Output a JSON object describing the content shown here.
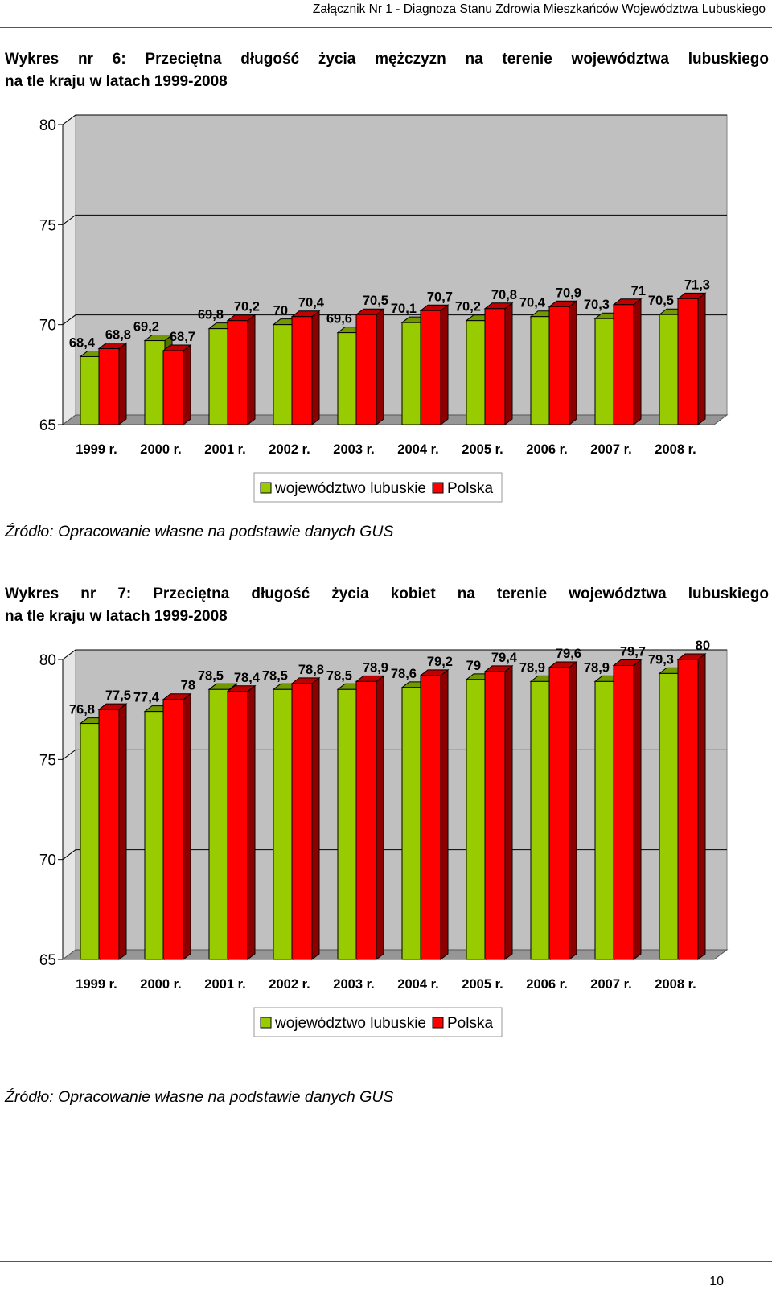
{
  "header": {
    "text": "Załącznik Nr 1 - Diagnoza Stanu Zdrowia Mieszkańców Województwa Lubuskiego"
  },
  "charts": [
    {
      "caption_line1": "Wykres nr 6: Przeciętna długość życia mężczyzn na terenie województwa lubuskiego",
      "caption_line2": "na tle kraju w latach 1999-2008",
      "source": "Źródło: Opracowanie własne na podstawie danych GUS"
    },
    {
      "caption_line1": "Wykres nr 7: Przeciętna długość życia kobiet na terenie województwa lubuskiego",
      "caption_line2": "na tle kraju w latach 1999-2008",
      "source": "Źródło: Opracowanie własne na podstawie danych GUS"
    }
  ],
  "colors": {
    "lubuskie": "#99cc00",
    "polska": "#ff0000",
    "plot_back": "#c0c0c0",
    "plot_floor": "#969696"
  },
  "chart_data": [
    {
      "type": "bar",
      "title": "Wykres nr 6: Przeciętna długość życia mężczyzn na terenie województwa lubuskiego na tle kraju w latach 1999-2008",
      "categories": [
        "1999 r.",
        "2000 r.",
        "2001 r.",
        "2002 r.",
        "2003 r.",
        "2004 r.",
        "2005 r.",
        "2006 r.",
        "2007 r.",
        "2008 r."
      ],
      "series": [
        {
          "name": "województwo lubuskie",
          "values": [
            68.4,
            69.2,
            69.8,
            70,
            69.6,
            70.1,
            70.2,
            70.4,
            70.3,
            70.5
          ],
          "labels": [
            "68,4",
            "69,2",
            "69,8",
            "70",
            "69,6",
            "70,1",
            "70,2",
            "70,4",
            "70,3",
            "70,5"
          ]
        },
        {
          "name": "Polska",
          "values": [
            68.8,
            68.7,
            70.2,
            70.4,
            70.5,
            70.7,
            70.8,
            70.9,
            71,
            71.3
          ],
          "labels": [
            "68,8",
            "68,7",
            "70,2",
            "70,4",
            "70,5",
            "70,7",
            "70,8",
            "70,9",
            "71",
            "71,3"
          ]
        }
      ],
      "yticks": [
        80,
        75,
        70,
        65
      ],
      "ylim": [
        65,
        80
      ],
      "grid": true,
      "legend": "bottom"
    },
    {
      "type": "bar",
      "title": "Wykres nr 7: Przeciętna długość życia kobiet na terenie województwa lubuskiego na tle kraju w latach 1999-2008",
      "categories": [
        "1999 r.",
        "2000 r.",
        "2001 r.",
        "2002 r.",
        "2003 r.",
        "2004 r.",
        "2005 r.",
        "2006 r.",
        "2007 r.",
        "2008 r."
      ],
      "series": [
        {
          "name": "województwo lubuskie",
          "values": [
            76.8,
            77.4,
            78.5,
            78.5,
            78.5,
            78.6,
            79,
            78.9,
            78.9,
            79.3
          ],
          "labels": [
            "76,8",
            "77,4",
            "78,5",
            "78,5",
            "78,5",
            "78,6",
            "79",
            "78,9",
            "78,9",
            "79,3"
          ]
        },
        {
          "name": "Polska",
          "values": [
            77.5,
            78,
            78.4,
            78.8,
            78.9,
            79.2,
            79.4,
            79.6,
            79.7,
            80
          ],
          "labels": [
            "77,5",
            "78",
            "78,4",
            "78,8",
            "78,9",
            "79,2",
            "79,4",
            "79,6",
            "79,7",
            "80"
          ]
        }
      ],
      "yticks": [
        80,
        75,
        70,
        65
      ],
      "ylim": [
        65,
        80
      ],
      "grid": true,
      "legend": "bottom"
    }
  ],
  "page_number": "10"
}
